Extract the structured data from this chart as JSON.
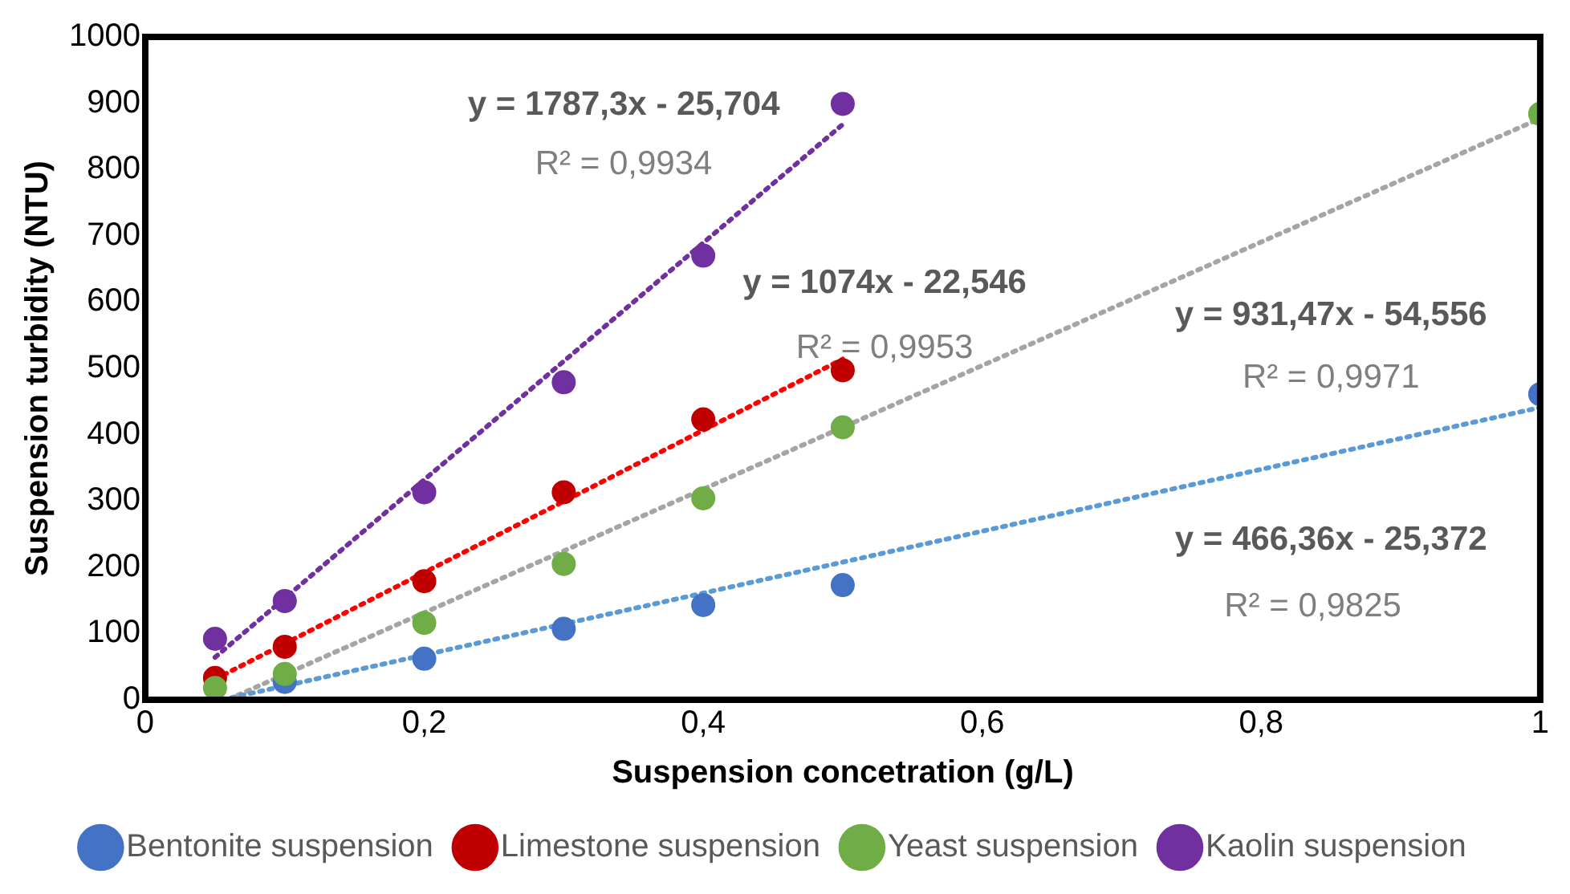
{
  "chart_data": {
    "type": "scatter",
    "xlabel": "Suspension concetration (g/L)",
    "ylabel": "Suspension turbidity (NTU)",
    "xlim": [
      0,
      1
    ],
    "xticks": [
      0,
      {
        "value": 0.2,
        "label": "0,2"
      },
      {
        "value": 0.4,
        "label": "0,4"
      },
      {
        "value": 0.6,
        "label": "0,6"
      },
      {
        "value": 0.8,
        "label": "0,8"
      },
      1
    ],
    "ylim": [
      0,
      1000
    ],
    "yticks": [
      0,
      100,
      200,
      300,
      400,
      500,
      600,
      700,
      800,
      900,
      1000
    ],
    "grid": false,
    "legend": "bottom",
    "marker": "circle",
    "series": [
      {
        "name": "Bentonite suspension",
        "color": "#4472c4",
        "x": [
          0.1,
          0.2,
          0.3,
          0.4,
          0.5,
          1
        ],
        "values": [
          27,
          62,
          107,
          143,
          173,
          461
        ]
      },
      {
        "name": "Limestone suspension",
        "color": "#c00000",
        "x": [
          0.05,
          0.1,
          0.2,
          0.3,
          0.4,
          0.5
        ],
        "values": [
          33,
          80,
          179,
          313,
          423,
          497
        ]
      },
      {
        "name": "Yeast suspension",
        "color": "#70ad47",
        "x": [
          0.05,
          0.1,
          0.2,
          0.3,
          0.4,
          0.5,
          1
        ],
        "values": [
          18,
          39,
          116,
          205,
          304,
          411,
          884
        ]
      },
      {
        "name": "Kaolin suspension",
        "color": "#7030a0",
        "x": [
          0.05,
          0.1,
          0.2,
          0.3,
          0.4,
          0.5
        ],
        "values": [
          92,
          149,
          313,
          479,
          670,
          899
        ]
      },
      {
        "type": "line",
        "line_style": "dotted",
        "marker": "none",
        "color": "#5b9bd5",
        "x": [
          0.055,
          1
        ],
        "values": [
          0,
          441
        ]
      },
      {
        "type": "line",
        "line_style": "dotted",
        "marker": "none",
        "color": "#ff0000",
        "x": [
          0.05,
          0.5
        ],
        "values": [
          31,
          514
        ]
      },
      {
        "type": "line",
        "line_style": "dotted",
        "marker": "none",
        "color": "#a5a5a5",
        "x": [
          0.06,
          1
        ],
        "values": [
          1,
          877
        ]
      },
      {
        "type": "line",
        "line_style": "dotted",
        "marker": "none",
        "color": "#7030a0",
        "x": [
          0.05,
          0.5
        ],
        "values": [
          64,
          868
        ]
      }
    ],
    "annotations": [
      "y = 1787,3x - 25,704",
      "R² = 0,9934",
      "y = 1074x - 22,546",
      "R² = 0,9953",
      "y = 931,47x - 54,556",
      "R² = 0,9971",
      "y = 466,36x - 25,372",
      "R² = 0,9825"
    ]
  }
}
